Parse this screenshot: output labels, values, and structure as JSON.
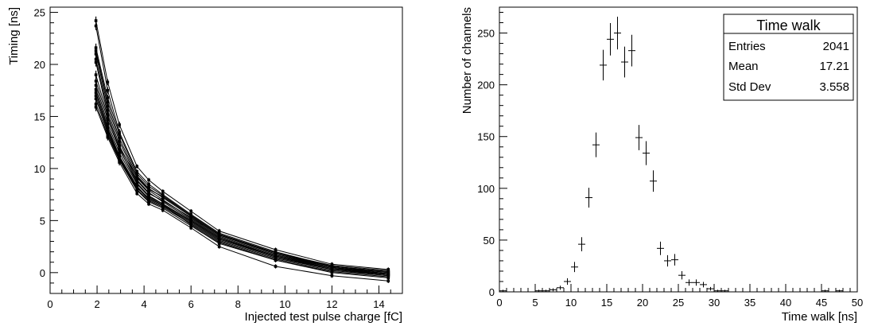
{
  "chart_data": [
    {
      "type": "line",
      "xlabel": "Injected test pulse charge [fC]",
      "ylabel": "Timing [ns]",
      "xlim": [
        0,
        15
      ],
      "ylim": [
        -2.0,
        25.5
      ],
      "xticks": [
        0,
        2,
        4,
        6,
        8,
        10,
        12,
        14
      ],
      "yticks": [
        0,
        5,
        10,
        15,
        20,
        25
      ],
      "grid": false,
      "x": [
        1.95,
        2.45,
        2.95,
        3.7,
        4.2,
        4.8,
        6.0,
        7.2,
        9.6,
        12.0,
        14.4
      ],
      "series": [
        {
          "values": [
            24.2,
            18.3,
            14.2,
            10.2,
            8.9,
            7.8,
            5.9,
            4.0,
            2.2,
            0.8,
            0.3
          ],
          "errors": [
            0.4,
            0.3,
            0.3,
            0.2,
            0.2,
            0.2,
            0.2,
            0.2,
            0.2,
            0.2,
            0.2
          ]
        },
        {
          "values": [
            23.7,
            17.5,
            13.5,
            9.7,
            8.5,
            7.5,
            5.6,
            3.8,
            2.0,
            0.6,
            0.1
          ],
          "errors": [
            0.4,
            0.3,
            0.3,
            0.2,
            0.2,
            0.2,
            0.2,
            0.2,
            0.2,
            0.2,
            0.2
          ]
        },
        {
          "values": [
            21.6,
            16.8,
            13.3,
            9.5,
            8.3,
            7.4,
            5.5,
            3.7,
            1.9,
            0.6,
            0.0
          ],
          "errors": [
            0.4,
            0.3,
            0.3,
            0.2,
            0.2,
            0.2,
            0.2,
            0.2,
            0.2,
            0.2,
            0.2
          ]
        },
        {
          "values": [
            21.3,
            16.4,
            12.9,
            9.3,
            8.1,
            7.2,
            5.4,
            3.6,
            1.8,
            0.5,
            -0.1
          ],
          "errors": [
            0.4,
            0.3,
            0.3,
            0.2,
            0.2,
            0.2,
            0.2,
            0.2,
            0.2,
            0.2,
            0.2
          ]
        },
        {
          "values": [
            21.0,
            16.0,
            12.6,
            9.1,
            7.9,
            7.0,
            5.2,
            3.5,
            1.7,
            0.5,
            -0.2
          ],
          "errors": [
            0.4,
            0.3,
            0.3,
            0.2,
            0.2,
            0.2,
            0.2,
            0.2,
            0.2,
            0.2,
            0.2
          ]
        },
        {
          "values": [
            20.5,
            15.6,
            12.2,
            8.9,
            7.7,
            6.8,
            5.1,
            3.4,
            1.6,
            0.4,
            -0.2
          ],
          "errors": [
            0.4,
            0.3,
            0.3,
            0.2,
            0.2,
            0.2,
            0.2,
            0.2,
            0.2,
            0.2,
            0.2
          ]
        },
        {
          "values": [
            20.2,
            15.2,
            11.9,
            8.6,
            7.4,
            6.6,
            5.0,
            3.3,
            1.5,
            0.3,
            -0.3
          ],
          "errors": [
            0.4,
            0.3,
            0.3,
            0.2,
            0.2,
            0.2,
            0.2,
            0.2,
            0.2,
            0.2,
            0.2
          ]
        },
        {
          "values": [
            18.4,
            14.7,
            11.8,
            8.8,
            7.6,
            6.9,
            5.3,
            3.6,
            1.9,
            0.7,
            0.2
          ],
          "errors": [
            0.4,
            0.3,
            0.3,
            0.2,
            0.2,
            0.2,
            0.2,
            0.2,
            0.2,
            0.2,
            0.2
          ]
        },
        {
          "values": [
            18.0,
            14.3,
            11.5,
            8.5,
            7.3,
            6.6,
            5.0,
            3.3,
            1.6,
            0.5,
            0.0
          ],
          "errors": [
            0.4,
            0.3,
            0.3,
            0.2,
            0.2,
            0.2,
            0.2,
            0.2,
            0.2,
            0.2,
            0.2
          ]
        },
        {
          "values": [
            17.6,
            14.0,
            11.2,
            8.3,
            7.1,
            6.5,
            4.9,
            3.2,
            1.5,
            0.4,
            -0.1
          ],
          "errors": [
            0.4,
            0.3,
            0.3,
            0.2,
            0.2,
            0.2,
            0.2,
            0.2,
            0.2,
            0.2,
            0.2
          ]
        },
        {
          "values": [
            17.0,
            13.6,
            11.0,
            8.2,
            7.0,
            6.4,
            4.8,
            3.1,
            1.4,
            0.3,
            -0.2
          ],
          "errors": [
            0.4,
            0.3,
            0.3,
            0.2,
            0.2,
            0.2,
            0.2,
            0.2,
            0.2,
            0.2,
            0.2
          ]
        },
        {
          "values": [
            16.7,
            13.4,
            10.9,
            8.0,
            6.9,
            6.3,
            4.7,
            3.0,
            1.3,
            0.2,
            -0.3
          ],
          "errors": [
            0.4,
            0.3,
            0.3,
            0.2,
            0.2,
            0.2,
            0.2,
            0.2,
            0.2,
            0.2,
            0.2
          ]
        },
        {
          "values": [
            16.2,
            13.2,
            10.8,
            7.9,
            6.8,
            6.2,
            4.5,
            2.8,
            1.2,
            0.1,
            -0.4
          ],
          "errors": [
            0.4,
            0.3,
            0.3,
            0.2,
            0.2,
            0.2,
            0.2,
            0.2,
            0.2,
            0.2,
            0.2
          ]
        },
        {
          "values": [
            15.9,
            13.0,
            10.6,
            7.6,
            6.6,
            6.0,
            4.3,
            2.5,
            0.6,
            -0.3,
            -0.8
          ],
          "errors": [
            0.4,
            0.3,
            0.3,
            0.2,
            0.2,
            0.2,
            0.2,
            0.2,
            0.2,
            0.2,
            0.2
          ]
        },
        {
          "values": [
            19.0,
            15.0,
            12.0,
            9.2,
            8.0,
            7.3,
            5.5,
            3.7,
            1.8,
            0.6,
            0.1
          ],
          "errors": [
            0.4,
            0.3,
            0.3,
            0.2,
            0.2,
            0.2,
            0.2,
            0.2,
            0.2,
            0.2,
            0.2
          ]
        },
        {
          "values": [
            17.3,
            13.8,
            11.1,
            8.1,
            7.2,
            6.5,
            4.6,
            2.9,
            1.2,
            0.0,
            -0.5
          ],
          "errors": [
            0.4,
            0.3,
            0.3,
            0.2,
            0.2,
            0.2,
            0.2,
            0.2,
            0.2,
            0.2,
            0.2
          ]
        }
      ]
    },
    {
      "type": "bar",
      "style": "histogram-points-with-error-bars",
      "xlabel": "Time walk [ns]",
      "ylabel": "Number of channels",
      "xlim": [
        0,
        50
      ],
      "ylim": [
        0,
        275
      ],
      "xticks": [
        0,
        5,
        10,
        15,
        20,
        25,
        30,
        35,
        40,
        45,
        50
      ],
      "yticks": [
        0,
        50,
        100,
        150,
        200,
        250
      ],
      "grid": false,
      "x": [
        0.5,
        5.5,
        6.5,
        7.5,
        8.5,
        9.5,
        10.5,
        11.5,
        12.5,
        13.5,
        14.5,
        15.5,
        16.5,
        17.5,
        18.5,
        19.5,
        20.5,
        21.5,
        22.5,
        23.5,
        24.5,
        25.5,
        26.5,
        27.5,
        28.5,
        29.5,
        30.5,
        31.5,
        45.5,
        47.5
      ],
      "values": [
        1,
        1,
        1,
        2,
        4,
        10,
        24,
        46,
        91,
        142,
        219,
        244,
        250,
        222,
        233,
        149,
        134,
        107,
        42,
        30,
        31,
        16,
        9,
        9,
        7,
        3,
        1,
        1,
        1,
        1
      ],
      "stats_box": {
        "title": "Time walk",
        "rows": [
          {
            "label": "Entries",
            "value": "2041"
          },
          {
            "label": "Mean",
            "value": "17.21"
          },
          {
            "label": "Std Dev",
            "value": "3.558"
          }
        ]
      }
    }
  ]
}
